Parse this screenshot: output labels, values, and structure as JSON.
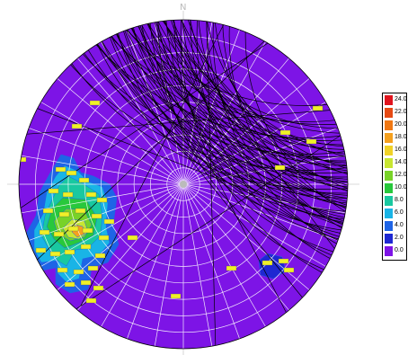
{
  "chart_data": {
    "type": "heatmap",
    "north_label": "N",
    "colormap": {
      "ticks": [
        "24.0",
        "22.0",
        "20.0",
        "18.0",
        "16.0",
        "14.0",
        "12.0",
        "10.0",
        "8.0",
        "6.0",
        "4.0",
        "2.0",
        "0.0"
      ],
      "colors": [
        "#e0141e",
        "#e64a14",
        "#f07814",
        "#f5a01e",
        "#f0d228",
        "#c8e632",
        "#78d228",
        "#28c83c",
        "#19c8a0",
        "#19b4e6",
        "#1e64e6",
        "#1e28d2",
        "#7d14e6"
      ]
    },
    "background_color": "#7d14e6",
    "grid": true
  }
}
